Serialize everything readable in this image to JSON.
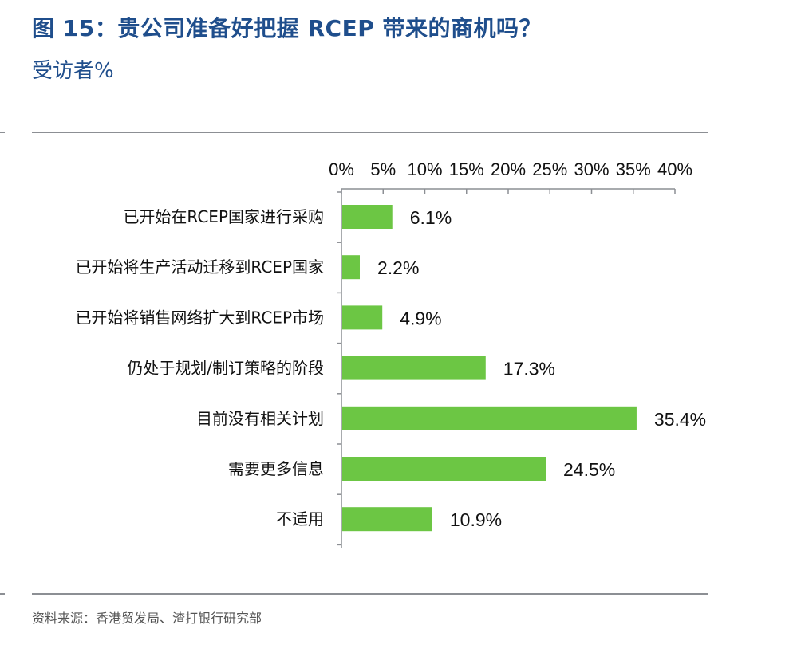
{
  "title": "图 15：贵公司准备好把握 RCEP 带来的商机吗？",
  "subtitle": "受访者%",
  "source": "资料来源：香港贸发局、渣打银行研究部",
  "chart_data": {
    "type": "bar",
    "orientation": "horizontal",
    "categories": [
      "已开始在RCEP国家进行采购",
      "已开始将生产活动迁移到RCEP国家",
      "已开始将销售网络扩大到RCEP市场",
      "仍处于规划/制订策略的阶段",
      "目前没有相关计划",
      "需要更多信息",
      "不适用"
    ],
    "values": [
      6.1,
      2.2,
      4.9,
      17.3,
      35.4,
      24.5,
      10.9
    ],
    "data_labels": [
      "6.1%",
      "2.2%",
      "4.9%",
      "17.3%",
      "35.4%",
      "24.5%",
      "10.9%"
    ],
    "xlim": [
      0,
      40
    ],
    "x_ticks": [
      "0%",
      "5%",
      "10%",
      "15%",
      "20%",
      "25%",
      "30%",
      "35%",
      "40%"
    ],
    "x_axis_position": "top",
    "grid": false,
    "bar_color": "#6cc644"
  }
}
